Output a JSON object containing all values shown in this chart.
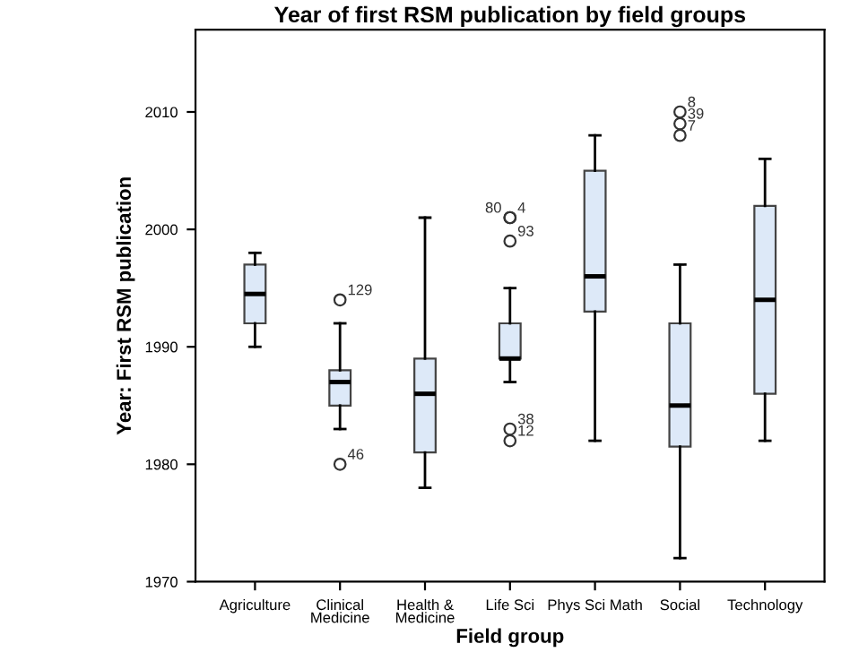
{
  "chart_data": {
    "type": "box",
    "title": "Year of first RSM publication by field groups",
    "xlabel": "Field group",
    "ylabel": "Year: First RSM publication",
    "categories": [
      "Agriculture",
      "Clinical\nMedicine",
      "Health &\nMedicine",
      "Life Sci",
      "Phys Sci Math",
      "Social",
      "Technology"
    ],
    "boxes": [
      {
        "low": 1990,
        "q1": 1992,
        "median": 1994.5,
        "q3": 1997,
        "high": 1998
      },
      {
        "low": 1983,
        "q1": 1985,
        "median": 1987,
        "q3": 1988,
        "high": 1992,
        "outliers": [
          1994,
          1980
        ]
      },
      {
        "low": 1978,
        "q1": 1981,
        "median": 1986,
        "q3": 1989,
        "high": 2001
      },
      {
        "low": 1987,
        "q1": 1989,
        "median": 1989,
        "q3": 1992,
        "high": 1995,
        "outliers": [
          2001,
          2001,
          1999,
          1983,
          1982
        ]
      },
      {
        "low": 1982,
        "q1": 1993,
        "median": 1996,
        "q3": 2005,
        "high": 2008
      },
      {
        "low": 1972,
        "q1": 1981.5,
        "median": 1985,
        "q3": 1992,
        "high": 1997,
        "outliers": [
          2010,
          2009,
          2008
        ]
      },
      {
        "low": 1982,
        "q1": 1986,
        "median": 1994,
        "q3": 2002,
        "high": 2006
      }
    ],
    "color": "#dde9f8",
    "ylim": [
      1970,
      2017
    ],
    "yticks": [
      1970,
      1980,
      1990,
      2000,
      2010
    ],
    "grid": false,
    "marker": "circle",
    "annotations": [
      "129",
      "46",
      "80",
      "4",
      "93",
      "38",
      "12",
      "8",
      "39",
      "7"
    ]
  }
}
